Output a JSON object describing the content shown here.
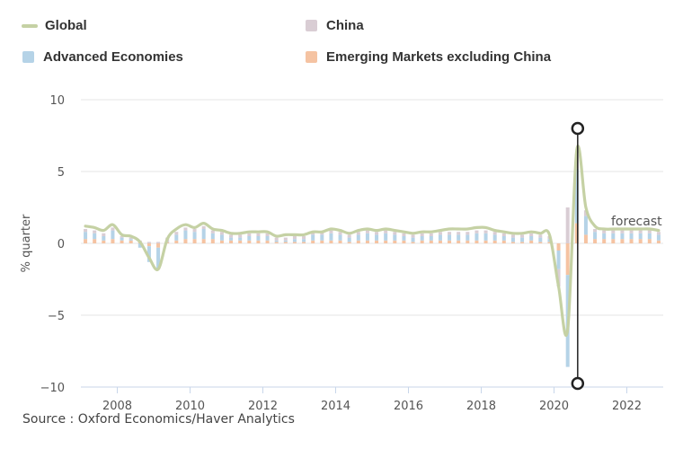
{
  "legend": {
    "global": {
      "label": "Global",
      "color": "#c5d1a4"
    },
    "china": {
      "label": "China",
      "color": "#d9cdd4"
    },
    "advanced": {
      "label": "Advanced Economies",
      "color": "#b5d3e7"
    },
    "emerging": {
      "label": "Emerging Markets excluding China",
      "color": "#f5c3a2"
    }
  },
  "source": "Source : Oxford Economics/Haver Analytics",
  "chart_data": {
    "type": "bar",
    "ylabel": "% quarter",
    "xlabel": "",
    "ylim": [
      -10,
      10
    ],
    "yticks": [
      "10",
      "5",
      "0",
      "−5",
      "−10"
    ],
    "xticks": [
      "2008",
      "2010",
      "2012",
      "2014",
      "2016",
      "2018",
      "2020",
      "2022"
    ],
    "annotation": "forecast",
    "grid": true,
    "stacked": true,
    "marker_quarter": "2020Q3",
    "categories": [
      "2007Q1",
      "2007Q2",
      "2007Q3",
      "2007Q4",
      "2008Q1",
      "2008Q2",
      "2008Q3",
      "2008Q4",
      "2009Q1",
      "2009Q2",
      "2009Q3",
      "2009Q4",
      "2010Q1",
      "2010Q2",
      "2010Q3",
      "2010Q4",
      "2011Q1",
      "2011Q2",
      "2011Q3",
      "2011Q4",
      "2012Q1",
      "2012Q2",
      "2012Q3",
      "2012Q4",
      "2013Q1",
      "2013Q2",
      "2013Q3",
      "2013Q4",
      "2014Q1",
      "2014Q2",
      "2014Q3",
      "2014Q4",
      "2015Q1",
      "2015Q2",
      "2015Q3",
      "2015Q4",
      "2016Q1",
      "2016Q2",
      "2016Q3",
      "2016Q4",
      "2017Q1",
      "2017Q2",
      "2017Q3",
      "2017Q4",
      "2018Q1",
      "2018Q2",
      "2018Q3",
      "2018Q4",
      "2019Q1",
      "2019Q2",
      "2019Q3",
      "2019Q4",
      "2020Q1",
      "2020Q2",
      "2020Q3",
      "2020Q4",
      "2021Q1",
      "2021Q2",
      "2021Q3",
      "2021Q4",
      "2022Q1",
      "2022Q2",
      "2022Q3",
      "2022Q4"
    ],
    "series": [
      {
        "name": "Global",
        "type": "line",
        "values": [
          1.2,
          1.1,
          0.9,
          1.3,
          0.6,
          0.5,
          0.1,
          -1.0,
          -1.8,
          0.3,
          1.0,
          1.3,
          1.1,
          1.4,
          1.0,
          0.9,
          0.7,
          0.7,
          0.8,
          0.8,
          0.8,
          0.5,
          0.6,
          0.6,
          0.6,
          0.8,
          0.8,
          1.0,
          0.9,
          0.7,
          0.9,
          1.0,
          0.9,
          1.0,
          0.9,
          0.8,
          0.7,
          0.8,
          0.8,
          0.9,
          1.0,
          1.0,
          1.0,
          1.1,
          1.1,
          0.9,
          0.8,
          0.7,
          0.7,
          0.8,
          0.7,
          0.6,
          -3.0,
          -6.0,
          6.5,
          2.5,
          1.2,
          1.0,
          1.0,
          1.0,
          1.0,
          1.0,
          1.0,
          0.9
        ]
      },
      {
        "name": "China",
        "type": "bar",
        "values": [
          0.2,
          0.2,
          0.2,
          0.2,
          0.1,
          0.1,
          0.1,
          0.1,
          0.1,
          0.3,
          0.2,
          0.2,
          0.2,
          0.2,
          0.2,
          0.2,
          0.2,
          0.2,
          0.2,
          0.2,
          0.2,
          0.2,
          0.2,
          0.2,
          0.2,
          0.2,
          0.2,
          0.2,
          0.2,
          0.2,
          0.2,
          0.2,
          0.2,
          0.2,
          0.2,
          0.2,
          0.2,
          0.2,
          0.2,
          0.2,
          0.2,
          0.2,
          0.2,
          0.2,
          0.2,
          0.2,
          0.2,
          0.2,
          0.2,
          0.2,
          0.2,
          0.2,
          -1.2,
          2.5,
          1.0,
          0.4,
          0.2,
          0.2,
          0.2,
          0.2,
          0.2,
          0.2,
          0.2,
          0.2
        ]
      },
      {
        "name": "Advanced Economies",
        "type": "bar",
        "values": [
          0.5,
          0.4,
          0.3,
          0.6,
          0.2,
          0.1,
          -0.3,
          -1.1,
          -1.5,
          0.0,
          0.4,
          0.6,
          0.5,
          0.7,
          0.4,
          0.4,
          0.2,
          0.2,
          0.3,
          0.3,
          0.3,
          0.1,
          0.1,
          0.2,
          0.2,
          0.4,
          0.4,
          0.5,
          0.4,
          0.3,
          0.4,
          0.5,
          0.4,
          0.5,
          0.4,
          0.3,
          0.3,
          0.3,
          0.3,
          0.4,
          0.4,
          0.4,
          0.4,
          0.5,
          0.5,
          0.4,
          0.3,
          0.3,
          0.3,
          0.3,
          0.3,
          0.2,
          -1.3,
          -6.4,
          3.8,
          1.3,
          0.5,
          0.4,
          0.4,
          0.4,
          0.4,
          0.4,
          0.4,
          0.4
        ]
      },
      {
        "name": "Emerging Markets excluding China",
        "type": "bar",
        "values": [
          0.3,
          0.3,
          0.2,
          0.3,
          0.2,
          0.2,
          0.1,
          -0.2,
          -0.3,
          0.1,
          0.2,
          0.3,
          0.3,
          0.3,
          0.3,
          0.2,
          0.2,
          0.2,
          0.2,
          0.2,
          0.2,
          0.1,
          0.1,
          0.1,
          0.1,
          0.2,
          0.2,
          0.2,
          0.2,
          0.1,
          0.2,
          0.2,
          0.2,
          0.2,
          0.2,
          0.2,
          0.1,
          0.2,
          0.2,
          0.2,
          0.2,
          0.2,
          0.2,
          0.2,
          0.2,
          0.2,
          0.2,
          0.1,
          0.1,
          0.2,
          0.1,
          0.1,
          -0.5,
          -2.2,
          1.4,
          0.6,
          0.3,
          0.3,
          0.3,
          0.3,
          0.3,
          0.3,
          0.3,
          0.2
        ]
      }
    ]
  }
}
